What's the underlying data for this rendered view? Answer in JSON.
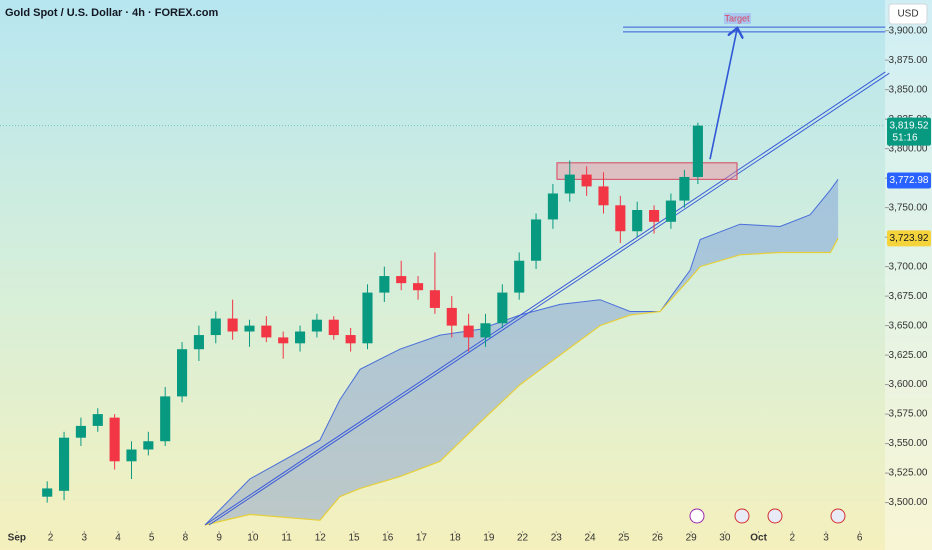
{
  "chart_data": {
    "type": "candlestick",
    "title": "Gold Spot / U.S. Dollar · 4h · FOREX.com",
    "currency": "USD",
    "up_color": "#089981",
    "down_color": "#f23645",
    "x": [
      0.9,
      1.4,
      1.9,
      2.4,
      2.9,
      3.4,
      3.9,
      4.4,
      4.9,
      5.4,
      5.9,
      6.4,
      6.9,
      7.4,
      7.9,
      8.4,
      8.9,
      9.4,
      9.9,
      10.4,
      10.9,
      11.4,
      11.9,
      12.4,
      12.9,
      13.4,
      13.9,
      14.4,
      14.9,
      15.4,
      15.9,
      16.4,
      16.9,
      17.4,
      17.9,
      18.4,
      18.9,
      19.4,
      19.8,
      20.2
    ],
    "open": [
      3505,
      3510,
      3555,
      3565,
      3572,
      3535,
      3545,
      3552,
      3590,
      3630,
      3642,
      3656,
      3645,
      3650,
      3640,
      3635,
      3645,
      3655,
      3642,
      3635,
      3678,
      3692,
      3686,
      3680,
      3665,
      3650,
      3640,
      3652,
      3678,
      3705,
      3740,
      3762,
      3778,
      3768,
      3752,
      3730,
      3748,
      3738,
      3756,
      3776
    ],
    "high": [
      3518,
      3560,
      3572,
      3580,
      3575,
      3552,
      3560,
      3598,
      3636,
      3650,
      3662,
      3672,
      3655,
      3658,
      3645,
      3650,
      3660,
      3658,
      3648,
      3685,
      3700,
      3705,
      3692,
      3712,
      3675,
      3660,
      3660,
      3685,
      3712,
      3745,
      3770,
      3790,
      3785,
      3780,
      3760,
      3755,
      3752,
      3762,
      3782,
      3822
    ],
    "low": [
      3500,
      3502,
      3548,
      3560,
      3528,
      3520,
      3540,
      3548,
      3585,
      3620,
      3635,
      3638,
      3632,
      3636,
      3622,
      3628,
      3640,
      3638,
      3628,
      3630,
      3670,
      3680,
      3672,
      3660,
      3640,
      3628,
      3632,
      3648,
      3672,
      3698,
      3732,
      3755,
      3760,
      3745,
      3720,
      3725,
      3728,
      3732,
      3750,
      3770
    ],
    "close": [
      3512,
      3555,
      3565,
      3575,
      3535,
      3545,
      3552,
      3590,
      3630,
      3642,
      3656,
      3645,
      3650,
      3640,
      3635,
      3645,
      3655,
      3642,
      3635,
      3678,
      3692,
      3686,
      3680,
      3665,
      3650,
      3640,
      3652,
      3678,
      3705,
      3740,
      3762,
      3778,
      3768,
      3752,
      3730,
      3748,
      3738,
      3756,
      3776,
      3819.52
    ],
    "cloud": {
      "color": "#5b7fd6",
      "x": [
        5.58,
        6.91,
        8.99,
        9.58,
        10.18,
        11.36,
        12.55,
        13.74,
        14.93,
        16.11,
        17.3,
        18.19,
        19.08,
        19.97,
        20.27,
        21.45,
        22.64,
        23.53,
        24.13,
        24.36
      ],
      "upper": [
        3481,
        3520,
        3553,
        3587,
        3613,
        3630,
        3642,
        3647,
        3659,
        3668,
        3672,
        3662,
        3662,
        3697,
        3723,
        3736,
        3734,
        3744,
        3765,
        3774
      ],
      "lower": [
        3481,
        3490,
        3485,
        3505,
        3512,
        3522,
        3535,
        3568,
        3600,
        3625,
        3650,
        3659,
        3662,
        3690,
        3700,
        3710,
        3712,
        3712,
        3712,
        3724
      ]
    },
    "trendline": {
      "color": "#3b5bd9",
      "x": [
        5.58,
        25.76
      ],
      "values": [
        3481,
        3865
      ]
    },
    "zone": {
      "x": [
        16.02,
        21.36
      ],
      "values": [
        3774,
        3788
      ]
    },
    "target": {
      "label": "Target",
      "x": [
        17.98,
        25.76
      ],
      "values": [
        3899,
        3903
      ],
      "arrow_x": [
        20.56,
        21.36
      ],
      "arrow_values": [
        3791,
        3901
      ]
    },
    "markers": [
      {
        "value": 3819.52,
        "label": "3,819.52",
        "countdown": "51:16",
        "color": "#089981"
      },
      {
        "value": 3772.98,
        "label": "3,772.98",
        "color": "#2962ff"
      },
      {
        "value": 3723.92,
        "label": "3,723.92",
        "color": "#f5d33b"
      }
    ],
    "xlim": [
      -0.5,
      25.75
    ],
    "ylim": [
      3481,
      3926
    ],
    "yticks": [
      {
        "value": 3500,
        "label": "3,500.00"
      },
      {
        "value": 3525,
        "label": "3,525.00"
      },
      {
        "value": 3550,
        "label": "3,550.00"
      },
      {
        "value": 3575,
        "label": "3,575.00"
      },
      {
        "value": 3600,
        "label": "3,600.00"
      },
      {
        "value": 3625,
        "label": "3,625.00"
      },
      {
        "value": 3650,
        "label": "3,650.00"
      },
      {
        "value": 3675,
        "label": "3,675.00"
      },
      {
        "value": 3700,
        "label": "3,700.00"
      },
      {
        "value": 3725,
        "label": "3,725.00"
      },
      {
        "value": 3750,
        "label": "3,750.00"
      },
      {
        "value": 3775,
        "label": "3,775.00"
      },
      {
        "value": 3800,
        "label": "3,800.00"
      },
      {
        "value": 3825,
        "label": "3,825.00"
      },
      {
        "value": 3850,
        "label": "3,850.00"
      },
      {
        "value": 3875,
        "label": "3,875.00"
      },
      {
        "value": 3900,
        "label": "3,900.00"
      }
    ],
    "xticks": [
      {
        "value": 0,
        "label": "Sep"
      },
      {
        "value": 1,
        "label": "2"
      },
      {
        "value": 2,
        "label": "3"
      },
      {
        "value": 3,
        "label": "4"
      },
      {
        "value": 4,
        "label": "5"
      },
      {
        "value": 5,
        "label": "8"
      },
      {
        "value": 6,
        "label": "9"
      },
      {
        "value": 7,
        "label": "10"
      },
      {
        "value": 8,
        "label": "11"
      },
      {
        "value": 9,
        "label": "12"
      },
      {
        "value": 10,
        "label": "15"
      },
      {
        "value": 11,
        "label": "16"
      },
      {
        "value": 12,
        "label": "17"
      },
      {
        "value": 13,
        "label": "18"
      },
      {
        "value": 14,
        "label": "19"
      },
      {
        "value": 15,
        "label": "22"
      },
      {
        "value": 16,
        "label": "23"
      },
      {
        "value": 17,
        "label": "24"
      },
      {
        "value": 18,
        "label": "25"
      },
      {
        "value": 19,
        "label": "26"
      },
      {
        "value": 20,
        "label": "29"
      },
      {
        "value": 21,
        "label": "30"
      },
      {
        "value": 22,
        "label": "Oct"
      },
      {
        "value": 23,
        "label": "2"
      },
      {
        "value": 24,
        "label": "3"
      },
      {
        "value": 25,
        "label": "6"
      }
    ]
  }
}
